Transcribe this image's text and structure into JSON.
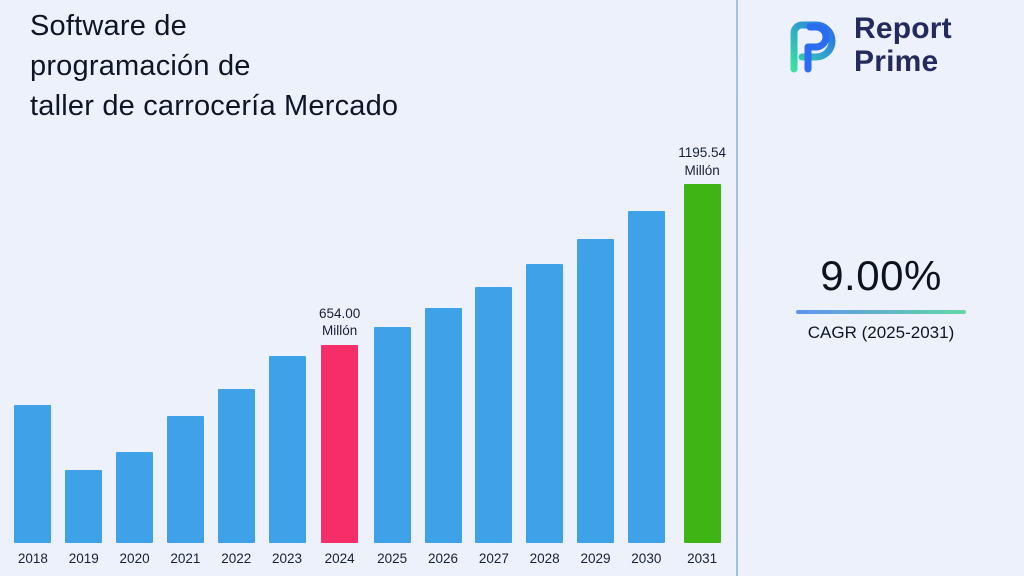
{
  "title": "Software de\nprogramación de\ntaller de carrocería Mercado",
  "logo": {
    "name_line1": "Report",
    "name_line2": "Prime",
    "icon": "report-prime-mark",
    "brand_colors": {
      "navy": "#232b5e",
      "blue": "#2a6df0",
      "green": "#3ae0a0"
    }
  },
  "stats": {
    "cagr_value": "9.00%",
    "cagr_label": "CAGR (2025-2031)"
  },
  "chart_data": {
    "type": "bar",
    "title": "Software de programación de taller de carrocería Mercado",
    "xlabel": "",
    "ylabel": "",
    "unit": "Millón",
    "categories": [
      "2018",
      "2019",
      "2020",
      "2021",
      "2022",
      "2023",
      "2024",
      "2025",
      "2026",
      "2027",
      "2028",
      "2029",
      "2030",
      "2031"
    ],
    "values": [
      455,
      240,
      300,
      420,
      510,
      620,
      654.0,
      712.86,
      777.02,
      846.95,
      923.18,
      1006.27,
      1096.83,
      1195.54
    ],
    "ylim": [
      0,
      1250
    ],
    "grid": false,
    "legend": false,
    "colors": {
      "default": "#3fa2e8",
      "highlight_2024": "#f52d68",
      "highlight_2031": "#3eb514"
    },
    "highlighted": {
      "2024": "#f52d68",
      "2031": "#3eb514"
    },
    "annotations": {
      "2024": "654.00\nMillón",
      "2031": "1195.54\nMillón"
    }
  }
}
